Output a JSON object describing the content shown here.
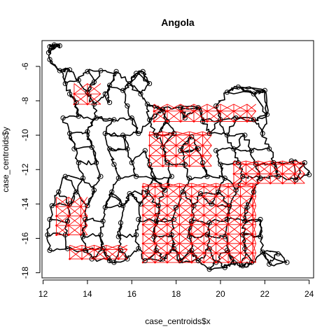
{
  "chart_data": {
    "type": "scatter",
    "title": "Angola",
    "xlabel": "case_centroids$x",
    "ylabel": "case_centroids$y",
    "xlim": [
      11.95,
      24.2
    ],
    "ylim": [
      -18.3,
      -4.5
    ],
    "xticks": [
      12,
      14,
      16,
      18,
      20,
      22,
      24
    ],
    "yticks": [
      -18,
      -16,
      -14,
      -12,
      -10,
      -8,
      -6
    ],
    "xtick_labels": [
      "12",
      "14",
      "16",
      "18",
      "20",
      "22",
      "24"
    ],
    "ytick_labels": [
      "-18",
      "-16",
      "-14",
      "-12",
      "-10",
      "-8",
      "-6"
    ],
    "grid": false,
    "colors": {
      "road": "#000000",
      "link": "#ff0000",
      "point": "#000000"
    },
    "series": [
      {
        "points": [
          [
            12.3,
            -4.85
          ],
          [
            12.5,
            -4.75
          ],
          [
            12.75,
            -4.8
          ],
          [
            12.25,
            -5.2
          ],
          [
            12.3,
            -5.6
          ],
          [
            12.75,
            -6.25
          ],
          [
            13.2,
            -6.2
          ],
          [
            14.0,
            -6.3
          ],
          [
            14.6,
            -6.25
          ],
          [
            15.3,
            -6.3
          ],
          [
            16.2,
            -6.4
          ],
          [
            16.5,
            -6.3
          ],
          [
            13.0,
            -7.0
          ],
          [
            13.6,
            -6.8
          ],
          [
            14.3,
            -6.9
          ],
          [
            15.0,
            -7.1
          ],
          [
            15.9,
            -7.0
          ],
          [
            16.8,
            -7.0
          ],
          [
            13.2,
            -7.6
          ],
          [
            14.0,
            -7.5
          ],
          [
            14.8,
            -7.6
          ],
          [
            15.6,
            -7.4
          ],
          [
            16.4,
            -7.6
          ],
          [
            13.5,
            -8.1
          ],
          [
            14.3,
            -8.2
          ],
          [
            15.0,
            -8.1
          ],
          [
            15.8,
            -8.3
          ],
          [
            16.7,
            -8.2
          ],
          [
            17.4,
            -8.5
          ],
          [
            18.2,
            -8.4
          ],
          [
            19.0,
            -8.4
          ],
          [
            19.8,
            -8.3
          ],
          [
            20.3,
            -7.5
          ],
          [
            20.8,
            -7.2
          ],
          [
            21.5,
            -7.6
          ],
          [
            22.0,
            -7.4
          ],
          [
            12.9,
            -9.0
          ],
          [
            13.6,
            -8.9
          ],
          [
            14.4,
            -9.0
          ],
          [
            15.2,
            -9.1
          ],
          [
            16.0,
            -9.0
          ],
          [
            16.8,
            -9.1
          ],
          [
            17.6,
            -9.2
          ],
          [
            18.4,
            -9.0
          ],
          [
            19.2,
            -9.2
          ],
          [
            20.0,
            -9.1
          ],
          [
            20.7,
            -9.0
          ],
          [
            21.5,
            -9.1
          ],
          [
            22.1,
            -8.8
          ],
          [
            13.2,
            -9.9
          ],
          [
            14.0,
            -9.8
          ],
          [
            14.8,
            -9.9
          ],
          [
            15.6,
            -10.0
          ],
          [
            16.3,
            -9.9
          ],
          [
            17.1,
            -10.0
          ],
          [
            17.9,
            -9.9
          ],
          [
            18.7,
            -10.1
          ],
          [
            19.5,
            -9.9
          ],
          [
            20.3,
            -10.0
          ],
          [
            21.1,
            -10.0
          ],
          [
            21.9,
            -9.9
          ],
          [
            13.4,
            -10.8
          ],
          [
            14.2,
            -10.7
          ],
          [
            15.0,
            -10.8
          ],
          [
            15.8,
            -10.8
          ],
          [
            16.6,
            -10.9
          ],
          [
            17.4,
            -10.7
          ],
          [
            18.2,
            -10.9
          ],
          [
            19.0,
            -10.8
          ],
          [
            19.8,
            -10.9
          ],
          [
            20.6,
            -10.8
          ],
          [
            21.4,
            -10.9
          ],
          [
            22.2,
            -10.8
          ],
          [
            13.6,
            -11.6
          ],
          [
            14.4,
            -11.6
          ],
          [
            15.2,
            -11.7
          ],
          [
            16.0,
            -11.6
          ],
          [
            16.8,
            -11.7
          ],
          [
            17.6,
            -11.6
          ],
          [
            18.4,
            -11.7
          ],
          [
            19.2,
            -11.6
          ],
          [
            20.0,
            -11.7
          ],
          [
            20.8,
            -11.6
          ],
          [
            21.6,
            -11.7
          ],
          [
            22.4,
            -11.6
          ],
          [
            23.2,
            -11.5
          ],
          [
            23.8,
            -11.6
          ],
          [
            13.0,
            -12.4
          ],
          [
            13.8,
            -12.5
          ],
          [
            14.6,
            -12.4
          ],
          [
            15.4,
            -12.5
          ],
          [
            16.2,
            -12.4
          ],
          [
            17.0,
            -12.5
          ],
          [
            17.8,
            -12.4
          ],
          [
            18.6,
            -12.5
          ],
          [
            19.4,
            -12.4
          ],
          [
            20.2,
            -12.5
          ],
          [
            21.0,
            -12.4
          ],
          [
            21.8,
            -12.5
          ],
          [
            22.6,
            -12.4
          ],
          [
            23.4,
            -12.6
          ],
          [
            24.0,
            -12.3
          ],
          [
            12.7,
            -13.3
          ],
          [
            13.5,
            -13.3
          ],
          [
            14.3,
            -13.2
          ],
          [
            15.1,
            -13.3
          ],
          [
            15.9,
            -13.4
          ],
          [
            16.7,
            -13.3
          ],
          [
            17.5,
            -13.2
          ],
          [
            18.3,
            -13.3
          ],
          [
            19.1,
            -13.4
          ],
          [
            19.9,
            -13.3
          ],
          [
            20.7,
            -13.2
          ],
          [
            21.5,
            -13.3
          ],
          [
            12.4,
            -14.1
          ],
          [
            13.2,
            -14.0
          ],
          [
            14.0,
            -14.1
          ],
          [
            14.8,
            -14.2
          ],
          [
            15.6,
            -14.1
          ],
          [
            16.4,
            -14.0
          ],
          [
            17.2,
            -14.1
          ],
          [
            18.0,
            -14.2
          ],
          [
            18.8,
            -14.1
          ],
          [
            19.6,
            -14.0
          ],
          [
            20.4,
            -14.1
          ],
          [
            21.2,
            -14.2
          ],
          [
            12.3,
            -14.9
          ],
          [
            13.1,
            -15.0
          ],
          [
            13.9,
            -14.9
          ],
          [
            14.7,
            -15.0
          ],
          [
            15.5,
            -15.1
          ],
          [
            16.3,
            -14.9
          ],
          [
            17.1,
            -15.0
          ],
          [
            17.9,
            -14.9
          ],
          [
            18.7,
            -15.0
          ],
          [
            19.5,
            -15.1
          ],
          [
            20.3,
            -14.9
          ],
          [
            21.1,
            -15.0
          ],
          [
            21.8,
            -14.9
          ],
          [
            12.2,
            -15.8
          ],
          [
            13.0,
            -15.8
          ],
          [
            13.8,
            -15.9
          ],
          [
            14.6,
            -15.8
          ],
          [
            15.4,
            -15.9
          ],
          [
            16.2,
            -15.8
          ],
          [
            17.0,
            -15.9
          ],
          [
            17.8,
            -15.8
          ],
          [
            18.6,
            -15.9
          ],
          [
            19.4,
            -15.8
          ],
          [
            20.2,
            -15.9
          ],
          [
            21.0,
            -15.8
          ],
          [
            21.8,
            -15.9
          ],
          [
            12.3,
            -16.7
          ],
          [
            13.1,
            -16.6
          ],
          [
            13.9,
            -16.7
          ],
          [
            14.7,
            -16.6
          ],
          [
            15.5,
            -16.7
          ],
          [
            16.3,
            -16.6
          ],
          [
            17.1,
            -16.7
          ],
          [
            17.9,
            -16.6
          ],
          [
            18.7,
            -16.7
          ],
          [
            19.5,
            -16.6
          ],
          [
            20.3,
            -16.7
          ],
          [
            21.1,
            -16.6
          ],
          [
            21.9,
            -16.8
          ],
          [
            22.6,
            -16.9
          ],
          [
            14.2,
            -17.2
          ],
          [
            15.0,
            -17.3
          ],
          [
            15.8,
            -17.2
          ],
          [
            16.6,
            -17.3
          ],
          [
            17.4,
            -17.2
          ],
          [
            18.2,
            -17.3
          ],
          [
            19.0,
            -17.3
          ],
          [
            19.8,
            -17.4
          ],
          [
            20.6,
            -17.4
          ],
          [
            21.4,
            -17.4
          ],
          [
            22.2,
            -17.5
          ],
          [
            23.0,
            -17.4
          ],
          [
            15.2,
            -17.4
          ],
          [
            19.5,
            -17.8
          ],
          [
            20.2,
            -17.7
          ],
          [
            21.0,
            -17.6
          ]
        ]
      }
    ]
  }
}
